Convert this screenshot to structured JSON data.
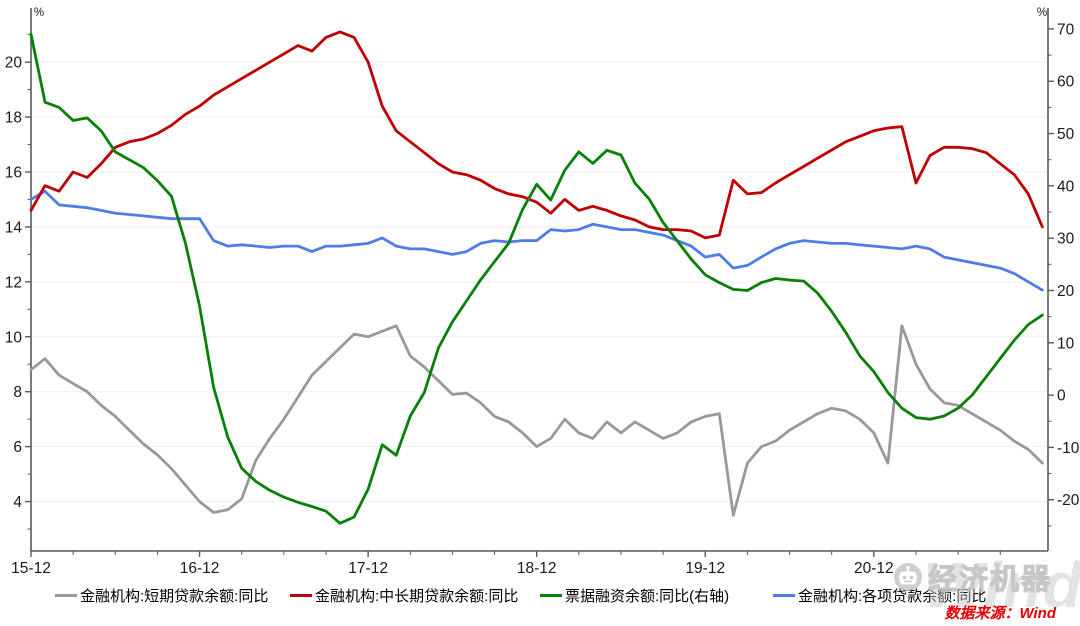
{
  "source_note": "数据来源：Wind",
  "watermark": {
    "brand": "经济机器",
    "background_word": "Wind"
  },
  "chart_data": {
    "type": "line",
    "title": "",
    "x_start": "2015-12",
    "x_end": "2021-12",
    "months_total": 73,
    "x_tick_labels": [
      "15-12",
      "16-12",
      "17-12",
      "18-12",
      "19-12",
      "20-12"
    ],
    "x_tick_months": [
      0,
      12,
      24,
      36,
      48,
      60
    ],
    "grid": "horizontal at left-axis major ticks, very faint",
    "legend_position": "bottom",
    "left_axis": {
      "unit": "%",
      "ticks": [
        4,
        6,
        8,
        10,
        12,
        14,
        16,
        18,
        20
      ],
      "range_at_plot_edges": [
        2.2,
        21.97
      ],
      "minor_tick_step": 1
    },
    "right_axis": {
      "unit": "%",
      "ticks": [
        -20,
        -10,
        0,
        10,
        20,
        30,
        40,
        50,
        60,
        70
      ],
      "range_at_plot_edges": [
        -29.8,
        74.0
      ],
      "minor_tick_step": 5
    },
    "series": [
      {
        "id": "short-term-loans",
        "name": "金融机构:短期贷款余额:同比",
        "axis": "left",
        "color": "#999999",
        "values": [
          8.8,
          9.2,
          8.6,
          8.3,
          8.0,
          7.5,
          7.1,
          6.6,
          6.1,
          5.7,
          5.2,
          4.6,
          4.0,
          3.6,
          3.7,
          4.1,
          5.5,
          6.3,
          7.0,
          7.8,
          8.6,
          9.1,
          9.6,
          10.1,
          10.0,
          10.2,
          10.4,
          9.3,
          8.9,
          8.4,
          7.9,
          7.95,
          7.6,
          7.1,
          6.9,
          6.5,
          6.0,
          6.3,
          7.0,
          6.5,
          6.3,
          6.9,
          6.5,
          6.9,
          6.6,
          6.3,
          6.5,
          6.9,
          7.1,
          7.2,
          3.5,
          5.4,
          6.0,
          6.2,
          6.6,
          6.9,
          7.2,
          7.4,
          7.3,
          7.0,
          6.5,
          5.4,
          10.4,
          9.0,
          8.1,
          7.6,
          7.5,
          7.2,
          6.9,
          6.6,
          6.2,
          5.9,
          5.4
        ]
      },
      {
        "id": "medium-long-term-loans",
        "name": "金融机构:中长期贷款余额:同比",
        "axis": "left",
        "color": "#c00000",
        "values": [
          14.6,
          15.5,
          15.3,
          16.0,
          15.8,
          16.3,
          16.9,
          17.1,
          17.2,
          17.4,
          17.7,
          18.1,
          18.4,
          18.8,
          19.1,
          19.4,
          19.7,
          20.0,
          20.3,
          20.6,
          20.4,
          20.9,
          21.1,
          20.9,
          20.0,
          18.4,
          17.5,
          17.1,
          16.7,
          16.3,
          16.0,
          15.9,
          15.7,
          15.4,
          15.2,
          15.1,
          14.9,
          14.5,
          15.0,
          14.6,
          14.75,
          14.6,
          14.4,
          14.25,
          14.0,
          13.9,
          13.9,
          13.85,
          13.6,
          13.7,
          15.7,
          15.2,
          15.25,
          15.6,
          15.9,
          16.2,
          16.5,
          16.8,
          17.1,
          17.3,
          17.5,
          17.6,
          17.65,
          15.6,
          16.6,
          16.9,
          16.9,
          16.85,
          16.7,
          16.3,
          15.9,
          15.2,
          14.0
        ]
      },
      {
        "id": "bill-financing",
        "name": "票据融资余额:同比(右轴)",
        "axis": "right",
        "color": "#068106",
        "values": [
          69,
          56,
          55,
          52.5,
          53,
          50.5,
          46.5,
          45,
          43.5,
          41,
          38,
          29,
          17,
          1.5,
          -8,
          -14,
          -16.5,
          -18.2,
          -19.5,
          -20.5,
          -21.3,
          -22.2,
          -24.5,
          -23.3,
          -18,
          -9.5,
          -11.5,
          -4,
          0.5,
          9,
          14,
          18,
          22,
          25.5,
          29,
          35.5,
          40.3,
          37.3,
          43,
          46.5,
          44.3,
          46.8,
          45.9,
          40.5,
          37.5,
          33,
          29.5,
          26,
          23,
          21.5,
          20.2,
          20.0,
          21.5,
          22.3,
          22.0,
          21.8,
          19.5,
          16.0,
          12.0,
          7.5,
          4.5,
          0.5,
          -2.5,
          -4.3,
          -4.6,
          -4.0,
          -2.5,
          0.0,
          3.5,
          7.0,
          10.5,
          13.5,
          15.3
        ]
      },
      {
        "id": "all-loans",
        "name": "金融机构:各项贷款余额:同比",
        "axis": "left",
        "color": "#4e7de9",
        "values": [
          15.0,
          15.3,
          14.8,
          14.75,
          14.7,
          14.6,
          14.5,
          14.45,
          14.4,
          14.35,
          14.3,
          14.3,
          14.3,
          13.5,
          13.3,
          13.35,
          13.3,
          13.25,
          13.3,
          13.3,
          13.1,
          13.3,
          13.3,
          13.35,
          13.4,
          13.6,
          13.3,
          13.2,
          13.2,
          13.1,
          13.0,
          13.1,
          13.4,
          13.5,
          13.45,
          13.5,
          13.5,
          13.9,
          13.85,
          13.9,
          14.1,
          14.0,
          13.9,
          13.9,
          13.8,
          13.7,
          13.5,
          13.3,
          12.9,
          13.0,
          12.5,
          12.6,
          12.9,
          13.2,
          13.4,
          13.5,
          13.45,
          13.4,
          13.4,
          13.35,
          13.3,
          13.25,
          13.2,
          13.3,
          13.2,
          12.9,
          12.8,
          12.7,
          12.6,
          12.5,
          12.3,
          12.0,
          11.7
        ]
      }
    ]
  }
}
